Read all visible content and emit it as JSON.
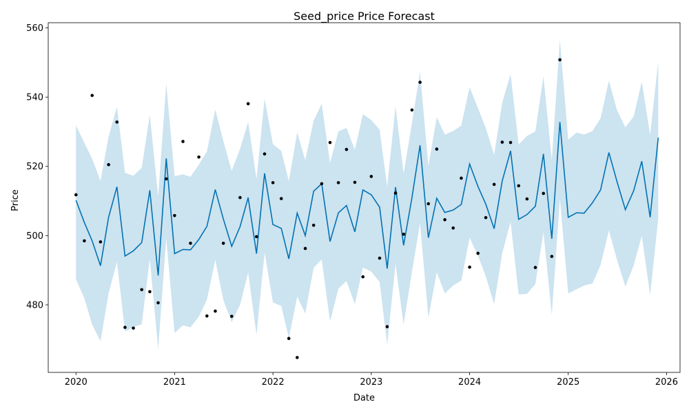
{
  "chart_data": {
    "type": "line",
    "title": "Seed_price Price Forecast",
    "xlabel": "Date",
    "ylabel": "Price",
    "xlim": [
      "2019-09-20",
      "2026-02-20"
    ],
    "ylim": [
      460.5,
      561.5
    ],
    "x_ticks": [
      "2020-01-01",
      "2021-01-01",
      "2022-01-01",
      "2023-01-01",
      "2024-01-01",
      "2025-01-01",
      "2026-01-01"
    ],
    "x_tick_labels": [
      "2020",
      "2021",
      "2022",
      "2023",
      "2024",
      "2025",
      "2026"
    ],
    "y_ticks": [
      480,
      500,
      520,
      540,
      560
    ],
    "grid": false,
    "colors": {
      "forecast": "#0072B2",
      "interval": "#0072B2",
      "observed": "#000000"
    },
    "series": [
      {
        "role": "forecast",
        "dates": [
          "2020-01-01",
          "2020-02-01",
          "2020-03-01",
          "2020-04-01",
          "2020-05-01",
          "2020-06-01",
          "2020-07-01",
          "2020-08-01",
          "2020-09-01",
          "2020-10-01",
          "2020-11-01",
          "2020-12-01",
          "2021-01-01",
          "2021-02-01",
          "2021-03-01",
          "2021-04-01",
          "2021-05-01",
          "2021-06-01",
          "2021-07-01",
          "2021-08-01",
          "2021-09-01",
          "2021-10-01",
          "2021-11-01",
          "2021-12-01",
          "2022-01-01",
          "2022-02-01",
          "2022-03-01",
          "2022-04-01",
          "2022-05-01",
          "2022-06-01",
          "2022-07-01",
          "2022-08-01",
          "2022-09-01",
          "2022-10-01",
          "2022-11-01",
          "2022-12-01",
          "2023-01-01",
          "2023-02-01",
          "2023-03-01",
          "2023-04-01",
          "2023-05-01",
          "2023-06-01",
          "2023-07-01",
          "2023-08-01",
          "2023-09-01",
          "2023-10-01",
          "2023-11-01",
          "2023-12-01",
          "2024-01-01",
          "2024-02-01",
          "2024-03-01",
          "2024-04-01",
          "2024-05-01",
          "2024-06-01",
          "2024-07-01",
          "2024-08-01",
          "2024-09-01",
          "2024-10-01",
          "2024-11-01",
          "2024-12-01",
          "2025-01-01",
          "2025-02-01",
          "2025-03-01",
          "2025-04-01",
          "2025-05-01",
          "2025-06-01",
          "2025-07-01",
          "2025-08-01",
          "2025-09-01",
          "2025-10-01",
          "2025-11-01",
          "2025-12-01"
        ],
        "yhat": [
          510.2,
          503.8,
          498.5,
          491.3,
          505.3,
          514.1,
          494.1,
          495.6,
          498.0,
          513.1,
          488.5,
          522.3,
          494.8,
          496.0,
          495.9,
          498.9,
          502.7,
          513.3,
          504.8,
          496.9,
          502.6,
          511.0,
          494.8,
          518.0,
          503.2,
          502.1,
          493.3,
          506.5,
          500.0,
          512.8,
          515.0,
          498.3,
          506.6,
          508.7,
          501.1,
          513.2,
          511.8,
          508.2,
          490.5,
          514.0,
          497.2,
          511.0,
          526.1,
          499.4,
          510.8,
          506.7,
          507.4,
          509.0,
          520.7,
          514.2,
          509.1,
          502.0,
          515.8,
          524.5,
          504.7,
          506.1,
          508.5,
          523.6,
          499.1,
          532.8,
          505.3,
          506.6,
          506.5,
          509.5,
          513.2,
          524.0,
          515.6,
          507.5,
          513.0,
          521.5,
          505.3,
          528.3
        ],
        "yhat_lower": [
          487.4,
          481.9,
          474.3,
          469.5,
          483.3,
          492.4,
          472.3,
          473.6,
          474.4,
          493.3,
          467.1,
          499.3,
          471.9,
          474.1,
          473.5,
          476.6,
          481.5,
          493.0,
          481.4,
          475.0,
          480.0,
          489.4,
          471.3,
          495.1,
          480.7,
          479.7,
          470.4,
          482.4,
          477.5,
          490.7,
          493.1,
          475.2,
          484.7,
          486.9,
          480.2,
          490.8,
          489.6,
          486.6,
          468.5,
          491.8,
          474.3,
          489.6,
          503.6,
          476.3,
          489.4,
          483.3,
          485.6,
          487.0,
          499.4,
          494.2,
          488.2,
          480.2,
          494.9,
          504.0,
          483.0,
          483.2,
          486.0,
          501.0,
          477.1,
          510.6,
          483.3,
          484.5,
          485.6,
          486.2,
          491.5,
          501.5,
          493.0,
          485.3,
          491.4,
          500.0,
          482.8,
          504.9
        ],
        "yhat_upper": [
          531.8,
          526.8,
          522.2,
          515.8,
          528.6,
          537.2,
          518.1,
          517.3,
          519.6,
          534.9,
          511.4,
          543.9,
          517.2,
          517.7,
          517.0,
          520.5,
          524.3,
          536.4,
          527.3,
          518.7,
          525.1,
          532.8,
          516.3,
          539.6,
          526.4,
          524.5,
          515.7,
          529.8,
          521.8,
          533.2,
          538.1,
          521.0,
          530.1,
          531.1,
          524.8,
          535.1,
          533.4,
          530.6,
          514.2,
          537.4,
          517.9,
          532.5,
          547.3,
          520.1,
          534.2,
          529.2,
          530.2,
          531.8,
          542.9,
          536.8,
          531.1,
          523.3,
          538.4,
          546.7,
          526.3,
          528.8,
          530.1,
          546.1,
          521.8,
          556.7,
          527.7,
          529.8,
          529.2,
          530.2,
          533.9,
          544.8,
          536.2,
          531.3,
          534.4,
          544.5,
          529.1,
          550.3
        ]
      },
      {
        "role": "observed",
        "dates": [
          "2020-01-01",
          "2020-02-01",
          "2020-03-01",
          "2020-04-01",
          "2020-05-01",
          "2020-06-01",
          "2020-07-01",
          "2020-08-01",
          "2020-09-01",
          "2020-10-01",
          "2020-11-01",
          "2020-12-01",
          "2021-01-01",
          "2021-02-01",
          "2021-03-01",
          "2021-04-01",
          "2021-05-01",
          "2021-06-01",
          "2021-07-01",
          "2021-08-01",
          "2021-09-01",
          "2021-10-01",
          "2021-11-01",
          "2021-12-01",
          "2022-01-01",
          "2022-02-01",
          "2022-03-01",
          "2022-04-01",
          "2022-05-01",
          "2022-06-01",
          "2022-07-01",
          "2022-08-01",
          "2022-09-01",
          "2022-10-01",
          "2022-11-01",
          "2022-12-01",
          "2023-01-01",
          "2023-02-01",
          "2023-03-01",
          "2023-04-01",
          "2023-05-01",
          "2023-06-01",
          "2023-07-01",
          "2023-08-01",
          "2023-09-01",
          "2023-10-01",
          "2023-11-01",
          "2023-12-01",
          "2024-01-01",
          "2024-02-01",
          "2024-03-01",
          "2024-04-01",
          "2024-05-01",
          "2024-06-01",
          "2024-07-01",
          "2024-08-01",
          "2024-09-01",
          "2024-10-01",
          "2024-11-01",
          "2024-12-01"
        ],
        "values": [
          511.8,
          498.5,
          540.5,
          498.2,
          520.5,
          532.8,
          473.5,
          473.3,
          484.4,
          483.8,
          480.6,
          516.4,
          505.8,
          527.2,
          497.8,
          522.7,
          476.8,
          478.2,
          497.8,
          476.7,
          511.0,
          538.1,
          499.7,
          523.6,
          515.3,
          510.7,
          470.3,
          464.8,
          496.3,
          503.0,
          515.0,
          526.9,
          515.3,
          524.9,
          515.4,
          488.1,
          517.1,
          493.5,
          473.7,
          512.3,
          500.4,
          536.3,
          544.3,
          509.2,
          525.0,
          504.6,
          502.2,
          516.6,
          490.9,
          494.9,
          505.2,
          514.8,
          527.0,
          526.9,
          514.4,
          510.6,
          490.8,
          512.2,
          494.0,
          550.8
        ]
      }
    ]
  }
}
